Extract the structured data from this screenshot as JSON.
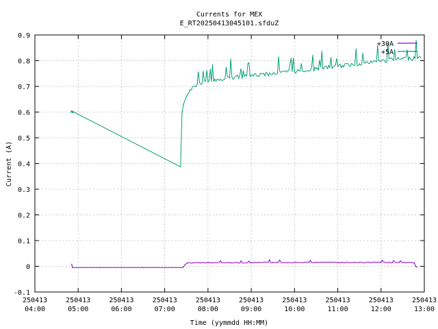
{
  "chart_data": {
    "type": "line",
    "title": "Currents for MEX",
    "subtitle": "E_RT20250413045101.sfduZ",
    "xlabel": "Time (yymmdd HH:MM)",
    "ylabel": "Current (A)",
    "xlim": [
      "250413 04:00",
      "250413 13:00"
    ],
    "ylim": [
      -0.1,
      0.9
    ],
    "grid": true,
    "legend_position": "top-right",
    "x_ticks": [
      {
        "date": "250413",
        "time": "04:00"
      },
      {
        "date": "250413",
        "time": "05:00"
      },
      {
        "date": "250413",
        "time": "06:00"
      },
      {
        "date": "250413",
        "time": "07:00"
      },
      {
        "date": "250413",
        "time": "08:00"
      },
      {
        "date": "250413",
        "time": "09:00"
      },
      {
        "date": "250413",
        "time": "10:00"
      },
      {
        "date": "250413",
        "time": "11:00"
      },
      {
        "date": "250413",
        "time": "12:00"
      },
      {
        "date": "250413",
        "time": "13:00"
      }
    ],
    "y_ticks": [
      "-0.1",
      "0",
      "0.1",
      "0.2",
      "0.3",
      "0.4",
      "0.5",
      "0.6",
      "0.7",
      "0.8",
      "0.9"
    ],
    "series": [
      {
        "name": "+30A",
        "color": "#9400d3",
        "points": [
          [
            "250413 04:51",
            0.008
          ],
          [
            "250413 04:52",
            -0.005
          ],
          [
            "250413 05:30",
            -0.005
          ],
          [
            "250413 06:30",
            -0.005
          ],
          [
            "250413 07:25",
            -0.005
          ],
          [
            "250413 07:28",
            0.005
          ],
          [
            "250413 07:31",
            0.013
          ],
          [
            "250413 08:00",
            0.014
          ],
          [
            "250413 08:30",
            0.014
          ],
          [
            "250413 09:00",
            0.014
          ],
          [
            "250413 09:30",
            0.015
          ],
          [
            "250413 10:00",
            0.015
          ],
          [
            "250413 10:30",
            0.015
          ],
          [
            "250413 11:00",
            0.015
          ],
          [
            "250413 11:30",
            0.015
          ],
          [
            "250413 12:00",
            0.015
          ],
          [
            "250413 12:30",
            0.015
          ],
          [
            "250413 12:46",
            0.014
          ],
          [
            "250413 12:48",
            0.0
          ],
          [
            "250413 12:50",
            -0.003
          ]
        ]
      },
      {
        "name": "+5A",
        "color": "#009e73",
        "points": [
          [
            "250413 04:50",
            0.6
          ],
          [
            "250413 04:51",
            0.605
          ],
          [
            "250413 04:52",
            0.597
          ],
          [
            "250413 04:53",
            0.603
          ],
          [
            "250413 04:54",
            0.6
          ],
          [
            "250413 07:22",
            0.387
          ],
          [
            "250413 07:24",
            0.6
          ],
          [
            "250413 07:26",
            0.63
          ],
          [
            "250413 07:30",
            0.66
          ],
          [
            "250413 07:35",
            0.685
          ],
          [
            "250413 07:45",
            0.708
          ],
          [
            "250413 08:00",
            0.718
          ],
          [
            "250413 08:30",
            0.733
          ],
          [
            "250413 09:00",
            0.742
          ],
          [
            "250413 09:30",
            0.75
          ],
          [
            "250413 10:00",
            0.758
          ],
          [
            "250413 10:30",
            0.768
          ],
          [
            "250413 11:00",
            0.778
          ],
          [
            "250413 11:30",
            0.788
          ],
          [
            "250413 12:00",
            0.798
          ],
          [
            "250413 12:30",
            0.808
          ],
          [
            "250413 12:55",
            0.812
          ]
        ]
      }
    ]
  }
}
